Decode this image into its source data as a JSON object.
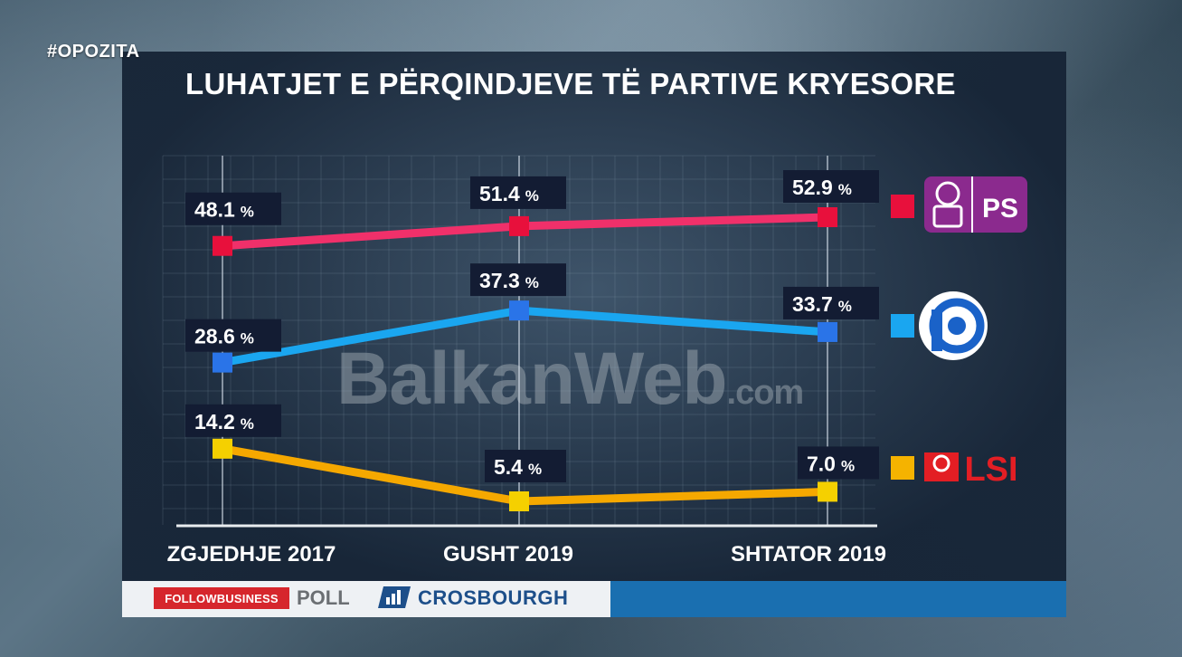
{
  "hashtag": "#OPOZITA",
  "watermark": {
    "main": "BalkanWeb",
    "suffix": ".com"
  },
  "footer": {
    "follow_business": "FOLLOWBUSINESS",
    "poll": "POLL",
    "crosbourgh": "CROSBOURGH"
  },
  "chart_data": {
    "type": "line",
    "title": "LUHATJET E PËRQINDJEVE TË PARTIVE KRYESORE",
    "categories": [
      "ZGJEDHJE 2017",
      "GUSHT 2019",
      "SHTATOR 2019"
    ],
    "ylim": [
      0,
      60
    ],
    "grid": true,
    "series": [
      {
        "name": "PS",
        "values": [
          48.1,
          51.4,
          52.9
        ],
        "labels": [
          "48.1",
          "51.4",
          "52.9"
        ],
        "color": "#f0306a",
        "marker": "#e8103c"
      },
      {
        "name": "",
        "values": [
          28.6,
          37.3,
          33.7
        ],
        "labels": [
          "28.6",
          "37.3",
          "33.7"
        ],
        "color": "#1aa6f0",
        "marker": "#2a74e8"
      },
      {
        "name": "LSI",
        "values": [
          14.2,
          5.4,
          7.0
        ],
        "labels": [
          "14.2",
          "5.4",
          "7.0"
        ],
        "color": "#f5a800",
        "marker": "#f5d000"
      }
    ],
    "unit": "%"
  }
}
